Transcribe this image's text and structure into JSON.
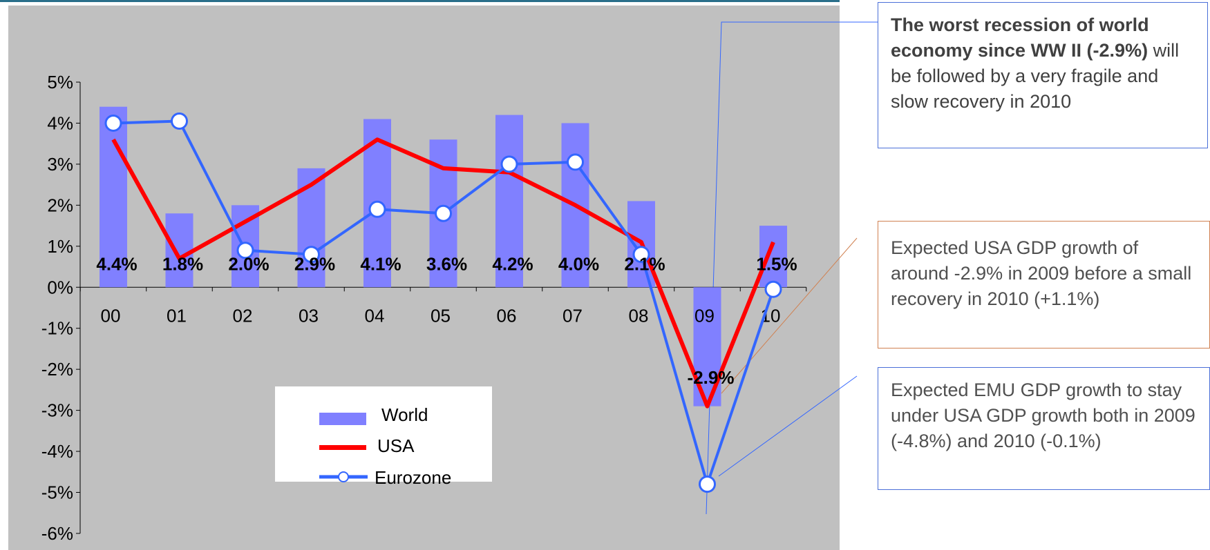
{
  "chart_data": {
    "type": "bar",
    "categories": [
      "00",
      "01",
      "02",
      "03",
      "04",
      "05",
      "06",
      "07",
      "08",
      "09",
      "10"
    ],
    "ylim": [
      -6,
      5
    ],
    "yticks": [
      "5%",
      "4%",
      "3%",
      "2%",
      "1%",
      "0%",
      "-1%",
      "-2%",
      "-3%",
      "-4%",
      "-5%",
      "-6%"
    ],
    "series": [
      {
        "name": "World",
        "kind": "bar",
        "values": [
          4.4,
          1.8,
          2.0,
          2.9,
          4.1,
          3.6,
          4.2,
          4.0,
          2.1,
          -2.9,
          1.5
        ],
        "labels": [
          "4.4%",
          "1.8%",
          "2.0%",
          "2.9%",
          "4.1%",
          "3.6%",
          "4.2%",
          "4.0%",
          "2.1%",
          "-2.9%",
          "1.5%"
        ]
      },
      {
        "name": "USA",
        "kind": "line",
        "values": [
          3.6,
          0.7,
          1.6,
          2.5,
          3.6,
          2.9,
          2.8,
          2.0,
          1.1,
          -2.9,
          1.1
        ]
      },
      {
        "name": "Eurozone",
        "kind": "line-marker",
        "values": [
          4.0,
          4.05,
          0.9,
          0.8,
          1.9,
          1.8,
          3.0,
          3.05,
          0.8,
          -4.8,
          -0.05
        ]
      }
    ],
    "grid": false,
    "legend_placement": "bottom-center"
  },
  "colors": {
    "plot_bg": "#c0c0c0",
    "world_bar": "#8080ff",
    "usa_line": "#ff0000",
    "eurozone_line": "#3366ff",
    "header_line": "#2a6f8a"
  },
  "legend": [
    {
      "label": "World"
    },
    {
      "label": "USA"
    },
    {
      "label": "Eurozone"
    }
  ],
  "callouts": {
    "recession": {
      "bold": "The worst recession of world economy since WW II (-2.9%)",
      "rest": " will be followed by a very fragile and slow recovery in 2010"
    },
    "usa": "Expected USA GDP growth of around -2.9% in 2009 before a small recovery in 2010 (+1.1%)",
    "emu": "Expected EMU GDP growth to stay under USA GDP growth both in 2009 (-4.8%) and 2010 (-0.1%)"
  }
}
